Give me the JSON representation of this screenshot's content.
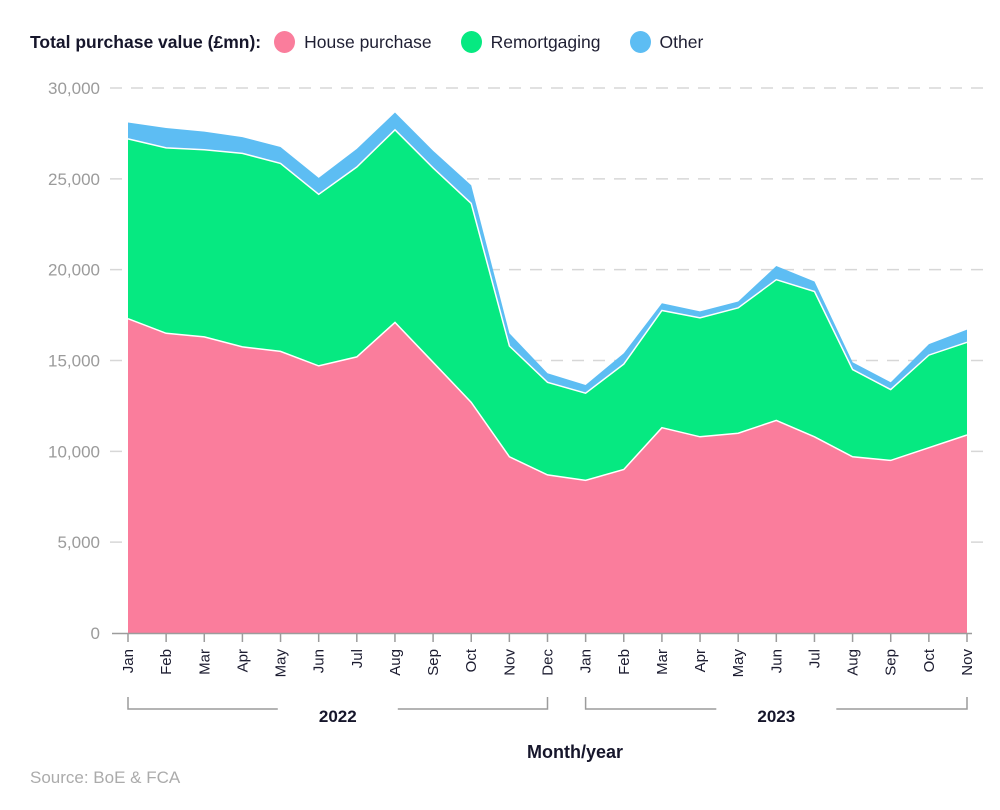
{
  "legend": {
    "title": "Total purchase value (£mn):",
    "items": [
      {
        "label": "House purchase",
        "color": "#fa7d9c"
      },
      {
        "label": "Remortgaging",
        "color": "#06e981"
      },
      {
        "label": "Other",
        "color": "#5dbdf3"
      }
    ]
  },
  "axes": {
    "x_title": "Month/year",
    "y_tick_values": [
      0,
      5000,
      10000,
      15000,
      20000,
      25000,
      30000
    ],
    "y_tick_labels": [
      "0",
      "5,000",
      "10,000",
      "15,000",
      "20,000",
      "25,000",
      "30,000"
    ]
  },
  "source": "Source: BoE & FCA",
  "chart_data": {
    "type": "area",
    "stacked": true,
    "title": "Total purchase value (£mn)",
    "xlabel": "Month/year",
    "ylabel": "",
    "ylim": [
      0,
      30000
    ],
    "grid": "dashed-horizontal",
    "legend_position": "top",
    "x": [
      "Jan",
      "Feb",
      "Mar",
      "Apr",
      "May",
      "Jun",
      "Jul",
      "Aug",
      "Sep",
      "Oct",
      "Nov",
      "Dec",
      "Jan",
      "Feb",
      "Mar",
      "Apr",
      "May",
      "Jun",
      "Jul",
      "Aug",
      "Sep",
      "Oct",
      "Nov"
    ],
    "x_years": [
      {
        "label": "2022",
        "from": 0,
        "to": 11
      },
      {
        "label": "2023",
        "from": 12,
        "to": 22
      }
    ],
    "series": [
      {
        "name": "House purchase",
        "color": "#fa7d9c",
        "values": [
          17300,
          16500,
          16300,
          15750,
          15500,
          14700,
          15200,
          17100,
          14900,
          12700,
          9700,
          8700,
          8400,
          9000,
          11300,
          10800,
          11000,
          11700,
          10800,
          9700,
          9500,
          10200,
          10900
        ]
      },
      {
        "name": "Remortgaging",
        "color": "#06e981",
        "values": [
          9900,
          10200,
          10300,
          10650,
          10350,
          9450,
          10450,
          10600,
          10700,
          10950,
          6100,
          5100,
          4800,
          5800,
          6450,
          6550,
          6900,
          7750,
          8000,
          4800,
          3900,
          5100,
          5100
        ]
      },
      {
        "name": "Other",
        "color": "#5dbdf3",
        "values": [
          900,
          1100,
          1000,
          900,
          900,
          900,
          1000,
          950,
          950,
          1000,
          700,
          500,
          450,
          600,
          400,
          350,
          350,
          750,
          550,
          400,
          400,
          600,
          700
        ]
      }
    ],
    "totals": [
      28100,
      27800,
      27600,
      27300,
      26750,
      25050,
      26650,
      28650,
      26550,
      24650,
      16500,
      14300,
      13650,
      15400,
      18150,
      17700,
      18250,
      20200,
      19350,
      14900,
      13800,
      15900,
      16700
    ]
  }
}
